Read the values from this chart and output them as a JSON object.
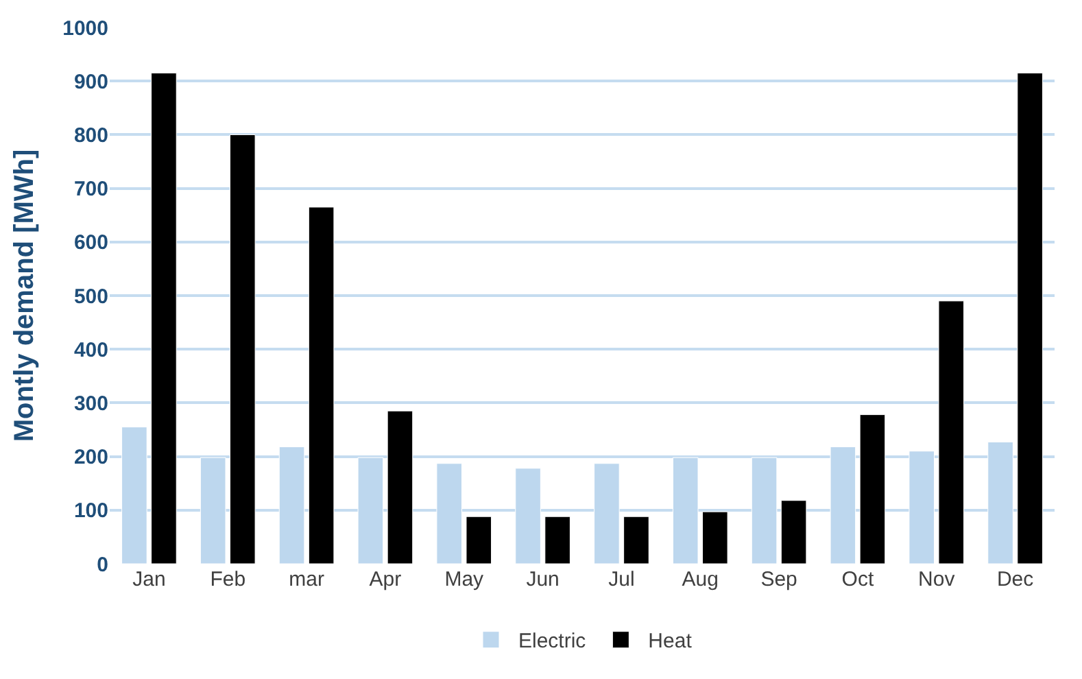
{
  "chart_data": {
    "type": "bar",
    "ylabel": "Montly demand [MWh]",
    "categories": [
      "Jan",
      "Feb",
      "mar",
      "Apr",
      "May",
      "Jun",
      "Jul",
      "Aug",
      "Sep",
      "Oct",
      "Nov",
      "Dec"
    ],
    "series": [
      {
        "name": "Electric",
        "color": "#bdd7ee",
        "values": [
          255,
          198,
          218,
          198,
          187,
          178,
          187,
          198,
          198,
          218,
          210,
          227
        ]
      },
      {
        "name": "Heat",
        "color": "#000000",
        "values": [
          915,
          800,
          665,
          285,
          88,
          88,
          88,
          97,
          118,
          278,
          490,
          915
        ]
      }
    ],
    "ylim": [
      0,
      1000
    ],
    "yticks": [
      0,
      100,
      200,
      300,
      400,
      500,
      600,
      700,
      800,
      900,
      1000
    ],
    "grid": "y",
    "legend": "bottom"
  }
}
